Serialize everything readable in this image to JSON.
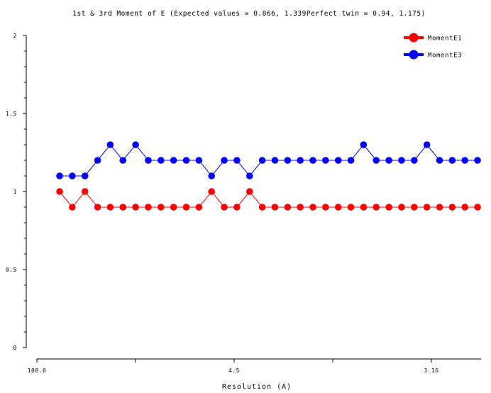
{
  "chart_data": {
    "type": "line",
    "title": "1st & 3rd Moment of E  (Expected values = 0.866, 1.339Perfect twin = 0.94, 1.175)",
    "xlabel": "Resolution (A)",
    "ylabel": "",
    "ylim": [
      0,
      2
    ],
    "yticks": [
      "0",
      "0.5",
      "1",
      "1.5",
      "2"
    ],
    "xtick_labels": [
      "100.0",
      "4.5",
      "3.16"
    ],
    "grid": false,
    "legend_position": "top-right",
    "series": [
      {
        "name": "MomentE1",
        "color": "#ff0000",
        "values": [
          1.0,
          0.9,
          1.0,
          0.9,
          0.9,
          0.9,
          0.9,
          0.9,
          0.9,
          0.9,
          0.9,
          0.9,
          1.0,
          0.9,
          0.9,
          1.0,
          0.9,
          0.9,
          0.9,
          0.9,
          0.9,
          0.9,
          0.9,
          0.9,
          0.9,
          0.9,
          0.9,
          0.9,
          0.9,
          0.9,
          0.9,
          0.9,
          0.9,
          0.9
        ]
      },
      {
        "name": "MomentE3",
        "color": "#0000ff",
        "values": [
          1.1,
          1.1,
          1.1,
          1.2,
          1.3,
          1.2,
          1.3,
          1.2,
          1.2,
          1.2,
          1.2,
          1.2,
          1.1,
          1.2,
          1.2,
          1.1,
          1.2,
          1.2,
          1.2,
          1.2,
          1.2,
          1.2,
          1.2,
          1.2,
          1.3,
          1.2,
          1.2,
          1.2,
          1.2,
          1.3,
          1.2,
          1.2,
          1.2,
          1.2
        ]
      }
    ]
  }
}
